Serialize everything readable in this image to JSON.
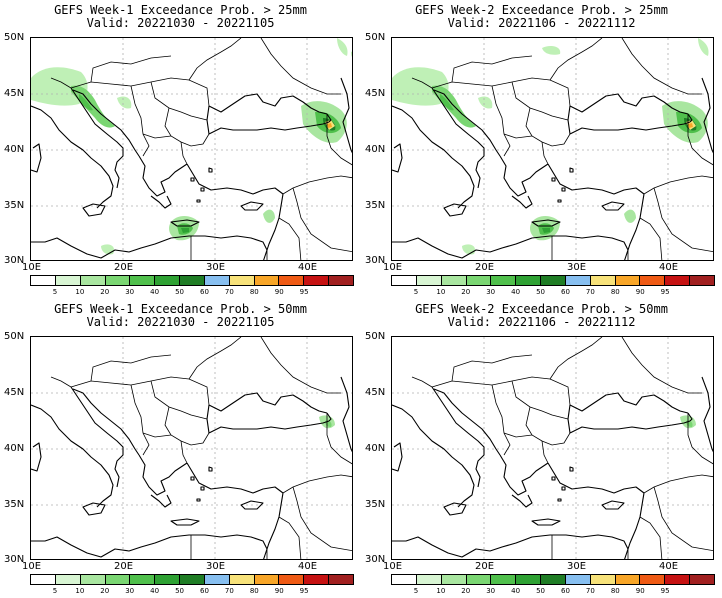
{
  "panels": [
    {
      "title1": "GEFS Week-1 Exceedance Prob. > 25mm",
      "title2": "Valid: 20221030 - 20221105"
    },
    {
      "title1": "GEFS Week-2 Exceedance Prob. > 25mm",
      "title2": "Valid: 20221106 - 20221112"
    },
    {
      "title1": "GEFS Week-1 Exceedance Prob. > 50mm",
      "title2": "Valid: 20221030 - 20221105"
    },
    {
      "title1": "GEFS Week-2 Exceedance Prob. > 50mm",
      "title2": "Valid: 20221106 - 20221112"
    }
  ],
  "axes": {
    "lat_labels": [
      "50N",
      "45N",
      "40N",
      "35N",
      "30N"
    ],
    "lon_labels": [
      "10E",
      "20E",
      "30E",
      "40E"
    ]
  },
  "colorbar": {
    "ticks": [
      "5",
      "10",
      "20",
      "30",
      "40",
      "50",
      "60",
      "70",
      "80",
      "90",
      "95"
    ],
    "colors": [
      "#ffffff",
      "#d8f5d3",
      "#a9e6a0",
      "#7ad672",
      "#50c04c",
      "#2ea133",
      "#1f7d25",
      "#87bff0",
      "#f7e27a",
      "#f8a628",
      "#ef5a14",
      "#c61212",
      "#a12020"
    ]
  },
  "chart_data": [
    {
      "type": "heatmap",
      "region": "Balkans / Turkey / Caucasus",
      "lat_range": [
        30,
        50
      ],
      "lon_range": [
        10,
        45
      ],
      "max_probability_area": "Georgia / Caucasus",
      "max_probability_range": "70-90"
    },
    {
      "type": "heatmap",
      "region": "Balkans / Turkey / Caucasus",
      "lat_range": [
        30,
        50
      ],
      "lon_range": [
        10,
        45
      ],
      "max_probability_area": "Georgia / Caucasus",
      "max_probability_range": "70-90"
    },
    {
      "type": "heatmap",
      "region": "Balkans / Turkey / Caucasus",
      "lat_range": [
        30,
        50
      ],
      "lon_range": [
        10,
        45
      ],
      "max_probability_area": "Georgia / Caucasus",
      "max_probability_range": "10-20"
    },
    {
      "type": "heatmap",
      "region": "Balkans / Turkey / Caucasus",
      "lat_range": [
        30,
        50
      ],
      "lon_range": [
        10,
        45
      ],
      "max_probability_area": "Georgia / Caucasus",
      "max_probability_range": "10-20"
    }
  ]
}
